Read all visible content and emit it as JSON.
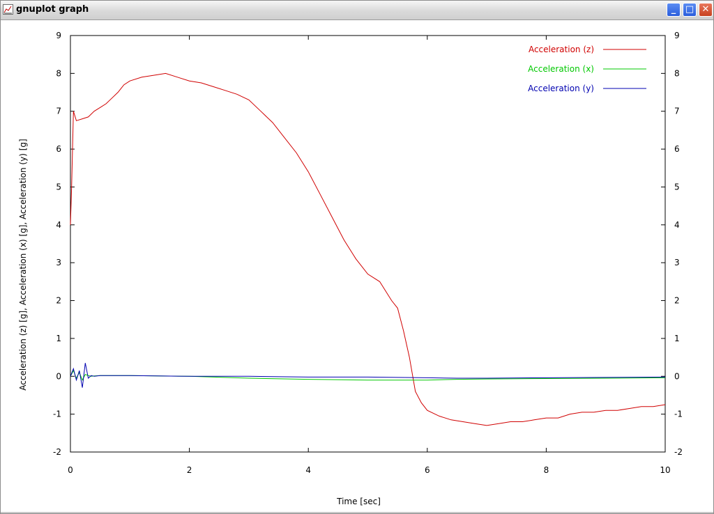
{
  "window": {
    "title": "gnuplot graph",
    "buttons": {
      "minimize": "_",
      "maximize": "□",
      "close": "✕"
    }
  },
  "colors": {
    "z": "#d00000",
    "x": "#00c800",
    "y": "#0000b0"
  },
  "chart_data": {
    "type": "line",
    "xlabel": "Time [sec]",
    "ylabel": "Acceleration (z) [g], Acceleration (x) [g], Acceleration (y) [g]",
    "xlim": [
      0,
      10
    ],
    "ylim": [
      -2,
      9
    ],
    "xticks": [
      0,
      2,
      4,
      6,
      8,
      10
    ],
    "yticks": [
      -2,
      -1,
      0,
      1,
      2,
      3,
      4,
      5,
      6,
      7,
      8,
      9
    ],
    "legend_position": "top-right",
    "grid": false,
    "series": [
      {
        "name": "Acceleration (z)",
        "color": "#d00000",
        "x": [
          0,
          0.02,
          0.05,
          0.1,
          0.2,
          0.3,
          0.4,
          0.5,
          0.6,
          0.7,
          0.8,
          0.9,
          1.0,
          1.2,
          1.4,
          1.6,
          1.8,
          2.0,
          2.2,
          2.4,
          2.6,
          2.8,
          3.0,
          3.2,
          3.4,
          3.6,
          3.8,
          4.0,
          4.2,
          4.4,
          4.6,
          4.8,
          5.0,
          5.2,
          5.4,
          5.5,
          5.6,
          5.7,
          5.8,
          5.9,
          6.0,
          6.2,
          6.4,
          6.6,
          6.8,
          7.0,
          7.2,
          7.4,
          7.6,
          7.8,
          8.0,
          8.2,
          8.4,
          8.6,
          8.8,
          9.0,
          9.2,
          9.4,
          9.6,
          9.8,
          10.0
        ],
        "y": [
          4.0,
          5.0,
          7.0,
          6.75,
          6.8,
          6.85,
          7.0,
          7.1,
          7.2,
          7.35,
          7.5,
          7.7,
          7.8,
          7.9,
          7.95,
          8.0,
          7.9,
          7.8,
          7.75,
          7.65,
          7.55,
          7.45,
          7.3,
          7.0,
          6.7,
          6.3,
          5.9,
          5.4,
          4.8,
          4.2,
          3.6,
          3.1,
          2.7,
          2.5,
          2.0,
          1.8,
          1.2,
          0.5,
          -0.4,
          -0.7,
          -0.9,
          -1.05,
          -1.15,
          -1.2,
          -1.25,
          -1.3,
          -1.25,
          -1.2,
          -1.2,
          -1.15,
          -1.1,
          -1.1,
          -1.0,
          -0.95,
          -0.95,
          -0.9,
          -0.9,
          -0.85,
          -0.8,
          -0.8,
          -0.75
        ]
      },
      {
        "name": "Acceleration (x)",
        "color": "#00c800",
        "x": [
          0,
          0.05,
          0.1,
          0.15,
          0.2,
          0.25,
          0.3,
          0.35,
          0.4,
          0.5,
          1.0,
          2.0,
          3.0,
          4.0,
          5.0,
          5.5,
          6.0,
          6.5,
          7.0,
          8.0,
          9.0,
          10.0
        ],
        "y": [
          0.0,
          0.15,
          -0.05,
          0.1,
          -0.1,
          0.05,
          0.02,
          0.0,
          0.01,
          0.02,
          0.02,
          0.0,
          -0.05,
          -0.08,
          -0.1,
          -0.1,
          -0.1,
          -0.08,
          -0.07,
          -0.06,
          -0.05,
          -0.04
        ]
      },
      {
        "name": "Acceleration (y)",
        "color": "#0000b0",
        "x": [
          0,
          0.05,
          0.1,
          0.15,
          0.2,
          0.25,
          0.3,
          0.35,
          0.4,
          0.5,
          1.0,
          2.0,
          3.0,
          4.0,
          5.0,
          5.5,
          6.0,
          6.5,
          7.0,
          8.0,
          9.0,
          10.0
        ],
        "y": [
          0.0,
          0.2,
          -0.1,
          0.15,
          -0.3,
          0.35,
          -0.05,
          0.02,
          0.0,
          0.02,
          0.02,
          0.0,
          0.0,
          -0.02,
          -0.02,
          -0.03,
          -0.04,
          -0.05,
          -0.05,
          -0.04,
          -0.03,
          -0.02
        ]
      }
    ]
  }
}
